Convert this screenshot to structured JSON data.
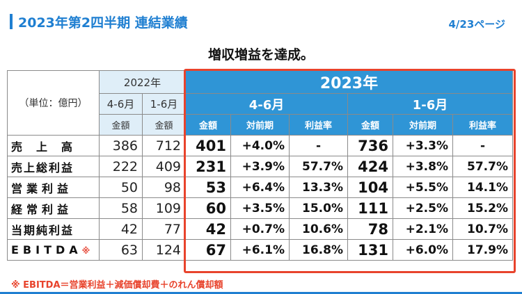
{
  "header": {
    "title": "2023年第2四半期 連結業績",
    "page": "4/23ページ"
  },
  "headline": "増収増益を達成。",
  "table": {
    "unit_label": "（単位：億円）",
    "year_2022": "2022年",
    "year_2023": "2023年",
    "period_q": "4-6月",
    "period_h": "1-6月",
    "col_amount": "金額",
    "col_yoy": "対前期",
    "col_margin": "利益率",
    "rows": [
      {
        "label": "売　上　高",
        "v22q": "386",
        "v22h": "712",
        "q_amt": "401",
        "q_yoy": "+4.0%",
        "q_margin": "-",
        "h_amt": "736",
        "h_yoy": "+3.3%",
        "h_margin": "-"
      },
      {
        "label": "売上総利益",
        "v22q": "222",
        "v22h": "409",
        "q_amt": "231",
        "q_yoy": "+3.9%",
        "q_margin": "57.7%",
        "h_amt": "424",
        "h_yoy": "+3.8%",
        "h_margin": "57.7%"
      },
      {
        "label": "営業利益",
        "v22q": "50",
        "v22h": "98",
        "q_amt": "53",
        "q_yoy": "+6.4%",
        "q_margin": "13.3%",
        "h_amt": "104",
        "h_yoy": "+5.5%",
        "h_margin": "14.1%"
      },
      {
        "label": "経常利益",
        "v22q": "58",
        "v22h": "109",
        "q_amt": "60",
        "q_yoy": "+3.5%",
        "q_margin": "15.0%",
        "h_amt": "111",
        "h_yoy": "+2.5%",
        "h_margin": "15.2%"
      },
      {
        "label": "当期純利益",
        "v22q": "42",
        "v22h": "77",
        "q_amt": "42",
        "q_yoy": "+0.7%",
        "q_margin": "10.6%",
        "h_amt": "78",
        "h_yoy": "+2.1%",
        "h_margin": "10.7%"
      },
      {
        "label": "EBITDA",
        "mark": "※",
        "v22q": "63",
        "v22h": "124",
        "q_amt": "67",
        "q_yoy": "+6.1%",
        "q_margin": "16.8%",
        "h_amt": "131",
        "h_yoy": "+6.0%",
        "h_margin": "17.9%"
      }
    ]
  },
  "footnote": "※ EBITDA＝営業利益＋減価償却費＋のれん償却額",
  "colors": {
    "accent": "#1f7fd1",
    "header_2023": "#2f95d6",
    "header_2022": "#dfeef8",
    "highlight": "#e8432c"
  }
}
